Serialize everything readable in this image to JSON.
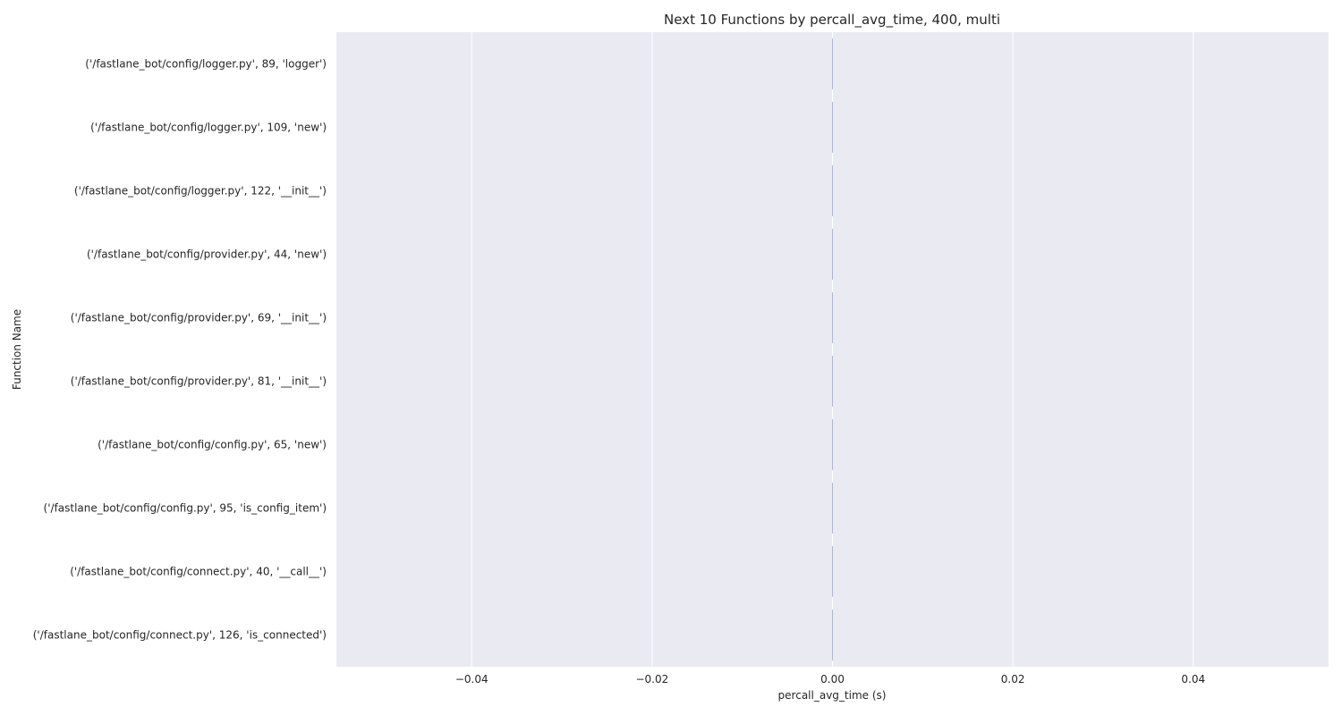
{
  "chart_data": {
    "type": "bar",
    "orientation": "horizontal",
    "title": "Next 10 Functions by percall_avg_time, 400, multi",
    "xlabel": "percall_avg_time (s)",
    "ylabel": "Function Name",
    "categories": [
      "('/fastlane_bot/config/logger.py', 89, 'logger')",
      "('/fastlane_bot/config/logger.py', 109, 'new')",
      "('/fastlane_bot/config/logger.py', 122, '__init__')",
      "('/fastlane_bot/config/provider.py', 44, 'new')",
      "('/fastlane_bot/config/provider.py', 69, '__init__')",
      "('/fastlane_bot/config/provider.py', 81, '__init__')",
      "('/fastlane_bot/config/config.py', 65, 'new')",
      "('/fastlane_bot/config/config.py', 95, 'is_config_item')",
      "('/fastlane_bot/config/connect.py', 40, '__call__')",
      "('/fastlane_bot/config/connect.py', 126, 'is_connected')"
    ],
    "values": [
      0,
      0,
      0,
      0,
      0,
      0,
      0,
      0,
      0,
      0
    ],
    "xlim": [
      -0.055,
      0.055
    ],
    "xticks": [
      -0.04,
      -0.02,
      0.0,
      0.02,
      0.04
    ],
    "xtick_labels": [
      "−0.04",
      "−0.02",
      "0.00",
      "0.02",
      "0.04"
    ],
    "grid": true,
    "colors": {
      "plot_background": "#eaeaf2",
      "grid": "#ffffff",
      "text": "#262626"
    }
  }
}
